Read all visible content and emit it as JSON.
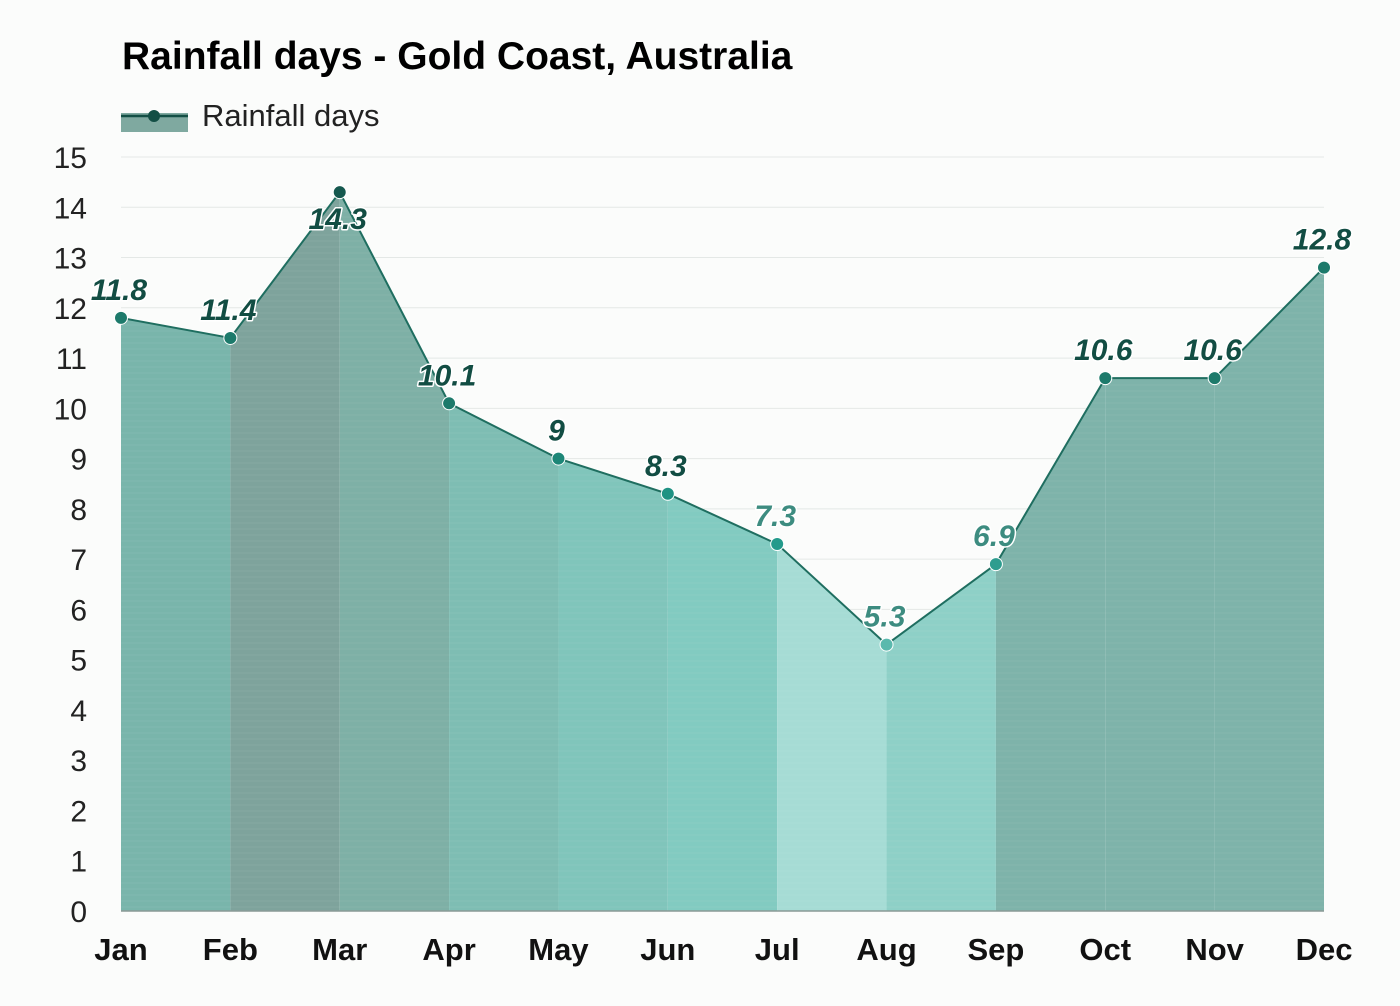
{
  "chart_data": {
    "type": "area",
    "title": "Rainfall days - Gold Coast, Australia",
    "legend": {
      "label": "Rainfall days",
      "position": "top-left"
    },
    "categories": [
      "Jan",
      "Feb",
      "Mar",
      "Apr",
      "May",
      "Jun",
      "Jul",
      "Aug",
      "Sep",
      "Oct",
      "Nov",
      "Dec"
    ],
    "series": [
      {
        "name": "Rainfall days",
        "values": [
          11.8,
          11.4,
          14.3,
          10.1,
          9,
          8.3,
          7.3,
          5.3,
          6.9,
          10.6,
          10.6,
          12.8
        ]
      }
    ],
    "value_labels": [
      "11.8",
      "11.4",
      "14.3",
      "10.1",
      "9",
      "8.3",
      "7.3",
      "5.3",
      "6.9",
      "10.6",
      "10.6",
      "12.8"
    ],
    "y_ticks": [
      "0",
      "1",
      "2",
      "3",
      "4",
      "5",
      "6",
      "7",
      "8",
      "9",
      "10",
      "11",
      "12",
      "13",
      "14",
      "15"
    ],
    "ylim": [
      0,
      15
    ],
    "grid": true,
    "colors": {
      "line": "#1f6e60",
      "legend_fill": "#7fa9a0",
      "legend_marker": "#134f45",
      "label_dark": "#124d43",
      "label_light": "#3d8c80",
      "grid": "#e4e8e6",
      "axis": "#8a9a96",
      "segments": [
        "#79b5ab",
        "#7ea39c",
        "#7eb0a6",
        "#7ebdb3",
        "#80c5bb",
        "#82cbc1",
        "#a6dcd5",
        "#8ed0c7",
        "#7eb3aa",
        "#7eb3aa",
        "#7eb3aa"
      ],
      "markers": [
        "#1d7a6b",
        "#1d7a6b",
        "#15584e",
        "#1d7a6b",
        "#1d8677",
        "#1f9283",
        "#239a8b",
        "#5ab9ad",
        "#2e9d8f",
        "#1d7a6b",
        "#1d7a6b",
        "#1d7a6b"
      ]
    }
  }
}
